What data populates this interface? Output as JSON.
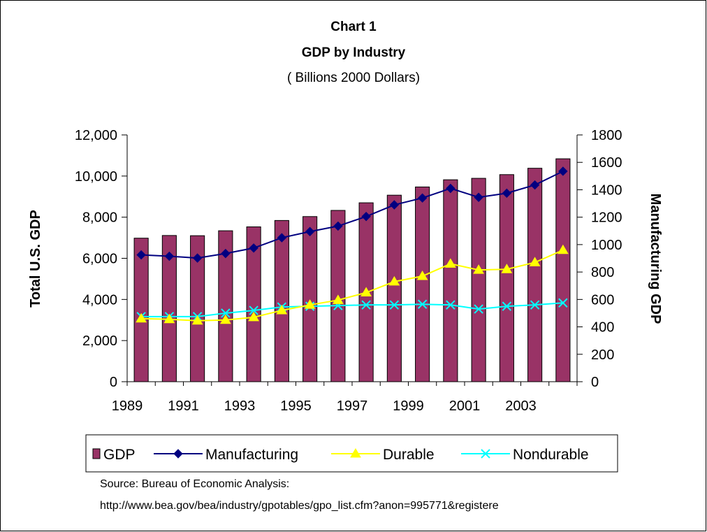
{
  "chart_data": {
    "type": "bar",
    "title_lines": [
      "Chart 1",
      "GDP by Industry",
      "( Billions 2000 Dollars)"
    ],
    "ylabel_left": "Total U.S. GDP",
    "ylabel_right": "Manufacturing GDP",
    "ylim_left": [
      0,
      12000
    ],
    "ylim_right": [
      0,
      1800
    ],
    "yticks_left": [
      "0",
      "2,000",
      "4,000",
      "6,000",
      "8,000",
      "10,000",
      "12,000"
    ],
    "yticks_right": [
      "0",
      "200",
      "400",
      "600",
      "800",
      "1000",
      "1200",
      "1400",
      "1600",
      "1800"
    ],
    "x": [
      1989,
      1990,
      1991,
      1992,
      1993,
      1994,
      1995,
      1996,
      1997,
      1998,
      1999,
      2000,
      2001,
      2002,
      2003,
      2004
    ],
    "xtick_labels": [
      "1989",
      "1991",
      "1993",
      "1995",
      "1997",
      "1999",
      "2001",
      "2003"
    ],
    "series": [
      {
        "name": "GDP",
        "type": "bar",
        "axis": "left",
        "color": "#993366",
        "values": [
          6980,
          7110,
          7100,
          7340,
          7530,
          7840,
          8030,
          8330,
          8700,
          9070,
          9470,
          9820,
          9890,
          10070,
          10380,
          10840
        ]
      },
      {
        "name": "Manufacturing",
        "type": "line",
        "axis": "right",
        "color": "#000080",
        "marker": "diamond",
        "values": [
          925,
          915,
          902,
          935,
          975,
          1050,
          1095,
          1135,
          1205,
          1290,
          1340,
          1410,
          1345,
          1375,
          1435,
          1535
        ]
      },
      {
        "name": "Durable",
        "type": "line",
        "axis": "right",
        "color": "#ffff00",
        "marker": "triangle",
        "values": [
          460,
          455,
          445,
          450,
          470,
          520,
          560,
          595,
          650,
          730,
          770,
          860,
          815,
          820,
          870,
          960
        ]
      },
      {
        "name": "Nondurable",
        "type": "line",
        "axis": "right",
        "color": "#00ffff",
        "marker": "x",
        "values": [
          475,
          475,
          475,
          500,
          520,
          545,
          550,
          555,
          560,
          560,
          565,
          560,
          530,
          550,
          560,
          575
        ]
      }
    ],
    "legend_position": "bottom"
  },
  "source": {
    "line1": "Source: Bureau of Economic Analysis:",
    "line2": "http://www.bea.gov/bea/industry/gpotables/gpo_list.cfm?anon=995771&registere"
  }
}
